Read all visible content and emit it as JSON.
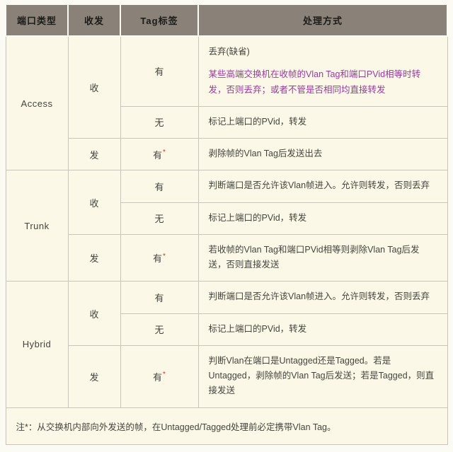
{
  "colors": {
    "page_bg": "#fbfbf3",
    "header_bg": "#8a8179",
    "header_text": "#1b1b18",
    "cell_bg": "#fcf8e8",
    "border": "#c9c5b8",
    "text": "#45453c",
    "purple": "#9a3a9e",
    "red": "#cc3333"
  },
  "star_symbol": "*",
  "header": {
    "columns": [
      {
        "key": "port-type",
        "label": "端口类型"
      },
      {
        "key": "direction",
        "label": "收发"
      },
      {
        "key": "tag",
        "label": "Tag标签"
      },
      {
        "key": "handling",
        "label": "处理方式"
      }
    ]
  },
  "sections": [
    {
      "port_type": "Access",
      "groups": [
        {
          "direction": "收",
          "rows": [
            {
              "tag": "有",
              "star": false,
              "paras": [
                {
                  "text": "丢弃(缺省)",
                  "style": "normal"
                },
                {
                  "text": "某些高端交换机在收帧的Vlan Tag和端口PVid相等时转发，否则丢弃；或者不管是否相同均直接转发",
                  "style": "purple"
                }
              ]
            },
            {
              "tag": "无",
              "star": false,
              "paras": [
                {
                  "text": "标记上端口的PVid，转发",
                  "style": "normal"
                }
              ]
            }
          ]
        },
        {
          "direction": "发",
          "rows": [
            {
              "tag": "有",
              "star": true,
              "paras": [
                {
                  "text": "剥除帧的Vlan Tag后发送出去",
                  "style": "normal"
                }
              ]
            }
          ]
        }
      ]
    },
    {
      "port_type": "Trunk",
      "groups": [
        {
          "direction": "收",
          "rows": [
            {
              "tag": "有",
              "star": false,
              "paras": [
                {
                  "text": "判断端口是否允许该Vlan帧进入。允许则转发，否则丢弃",
                  "style": "normal"
                }
              ]
            },
            {
              "tag": "无",
              "star": false,
              "paras": [
                {
                  "text": "标记上端口的PVid，转发",
                  "style": "normal"
                }
              ]
            }
          ]
        },
        {
          "direction": "发",
          "rows": [
            {
              "tag": "有",
              "star": true,
              "paras": [
                {
                  "text": "若收帧的Vlan Tag和端口PVid相等则剥除Vlan Tag后发送，否则直接发送",
                  "style": "normal"
                }
              ]
            }
          ]
        }
      ]
    },
    {
      "port_type": "Hybrid",
      "groups": [
        {
          "direction": "收",
          "rows": [
            {
              "tag": "有",
              "star": false,
              "paras": [
                {
                  "text": "判断端口是否允许该Vlan帧进入。允许则转发，否则丢弃",
                  "style": "normal"
                }
              ]
            },
            {
              "tag": "无",
              "star": false,
              "paras": [
                {
                  "text": "标记上端口的PVid，转发",
                  "style": "normal"
                }
              ]
            }
          ]
        },
        {
          "direction": "发",
          "rows": [
            {
              "tag": "有",
              "star": true,
              "paras": [
                {
                  "text": "判断Vlan在端口是Untagged还是Tagged。若是Untagged，剥除帧的Vlan Tag后发送；若是Tagged，则直接发送",
                  "style": "normal"
                }
              ]
            }
          ]
        }
      ]
    }
  ],
  "footnote": "注*：从交换机内部向外发送的帧，在Untagged/Tagged处理前必定携带Vlan Tag。"
}
